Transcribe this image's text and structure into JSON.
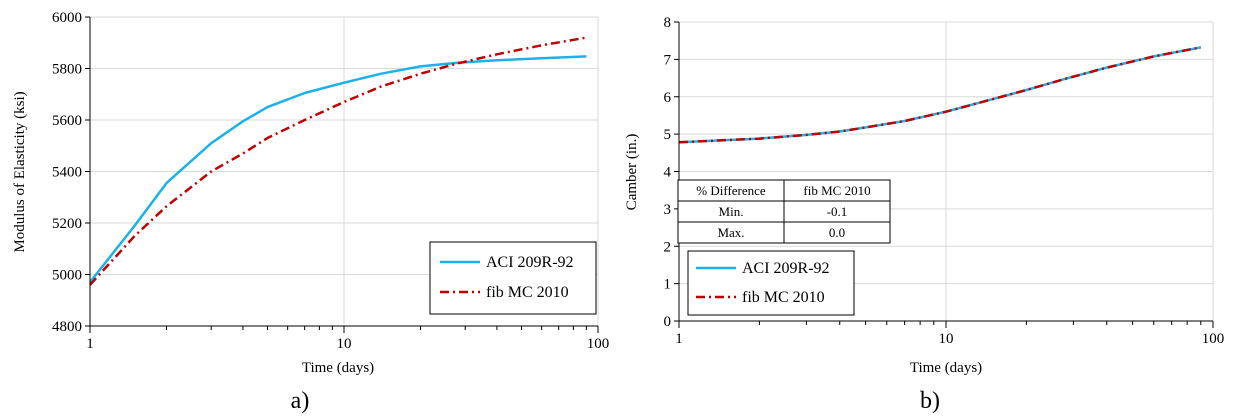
{
  "colors": {
    "aci": "#1ab2e8",
    "fib": "#c00000",
    "grid": "#d9d9d9",
    "axis": "#000000"
  },
  "chart_data": [
    {
      "type": "line",
      "panel_label": "a)",
      "xlabel": "Time (days)",
      "ylabel": "Modulus of Elasticity (ksi)",
      "x_scale": "log",
      "xlim": [
        1,
        100
      ],
      "ylim": [
        4800,
        6000
      ],
      "x_ticks": [
        "1",
        "10",
        "100"
      ],
      "y_ticks": [
        "4800",
        "5000",
        "5200",
        "5400",
        "5600",
        "5800",
        "6000"
      ],
      "grid": true,
      "legend_position": "bottom-right",
      "series": [
        {
          "name": "ACI 209R-92",
          "style": "solid",
          "x": [
            1,
            1.5,
            2,
            3,
            4,
            5,
            7,
            10,
            14,
            20,
            28,
            40,
            60,
            90
          ],
          "y": [
            4970,
            5190,
            5355,
            5510,
            5595,
            5650,
            5705,
            5745,
            5780,
            5808,
            5822,
            5832,
            5840,
            5847
          ]
        },
        {
          "name": "fib MC 2010",
          "style": "dashdot",
          "x": [
            1,
            1.5,
            2,
            3,
            4,
            5,
            7,
            10,
            14,
            20,
            28,
            40,
            60,
            90
          ],
          "y": [
            4960,
            5150,
            5265,
            5400,
            5470,
            5530,
            5600,
            5670,
            5730,
            5780,
            5820,
            5855,
            5890,
            5920
          ]
        }
      ]
    },
    {
      "type": "line",
      "panel_label": "b)",
      "xlabel": "Time (days)",
      "ylabel": "Camber (in.)",
      "x_scale": "log",
      "xlim": [
        1,
        100
      ],
      "ylim": [
        0,
        8
      ],
      "x_ticks": [
        "1",
        "10",
        "100"
      ],
      "y_ticks": [
        "0",
        "1",
        "2",
        "3",
        "4",
        "5",
        "6",
        "7",
        "8"
      ],
      "grid": true,
      "legend_position": "bottom-left",
      "series": [
        {
          "name": "ACI 209R-92",
          "style": "solid",
          "x": [
            1,
            2,
            3,
            4,
            5,
            7,
            10,
            14,
            20,
            28,
            40,
            60,
            90
          ],
          "y": [
            4.78,
            4.88,
            4.98,
            5.07,
            5.18,
            5.35,
            5.6,
            5.88,
            6.18,
            6.48,
            6.78,
            7.08,
            7.32
          ]
        },
        {
          "name": "fib MC 2010",
          "style": "dashdot",
          "x": [
            1,
            2,
            3,
            4,
            5,
            7,
            10,
            14,
            20,
            28,
            40,
            60,
            90
          ],
          "y": [
            4.78,
            4.88,
            4.98,
            5.07,
            5.18,
            5.35,
            5.6,
            5.88,
            6.18,
            6.48,
            6.78,
            7.08,
            7.32
          ]
        }
      ],
      "table": {
        "headers": [
          "% Difference",
          "fib MC 2010"
        ],
        "rows": [
          [
            "Min.",
            "-0.1"
          ],
          [
            "Max.",
            "0.0"
          ]
        ]
      }
    }
  ]
}
